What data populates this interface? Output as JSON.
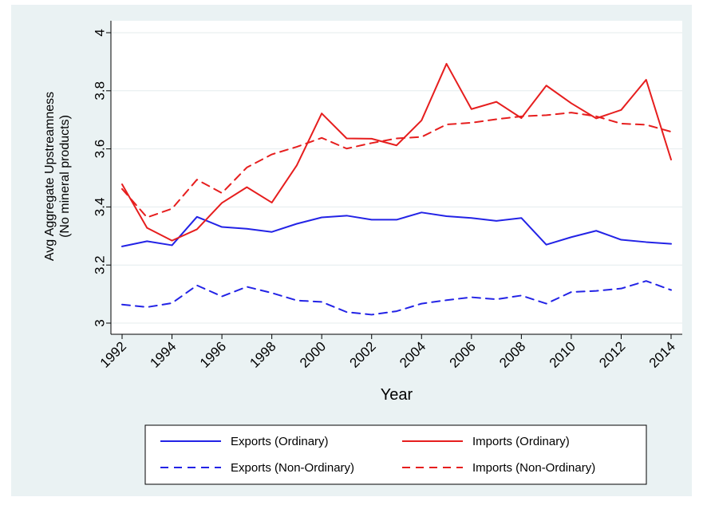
{
  "chart_data": {
    "type": "line",
    "title": "",
    "xlabel": "Year",
    "ylabel_line1": "Avg Aggregate Upstreamness",
    "ylabel_line2": "(No mineral products)",
    "xlim": [
      1992,
      2014
    ],
    "ylim": [
      3,
      4
    ],
    "x_ticks": [
      1992,
      1994,
      1996,
      1998,
      2000,
      2002,
      2004,
      2006,
      2008,
      2010,
      2012,
      2014
    ],
    "y_ticks": [
      3,
      3.2,
      3.4,
      3.6,
      3.8,
      4
    ],
    "y_tick_labels": [
      "3",
      "3.2",
      "3.4",
      "3.6",
      "3.8",
      "4"
    ],
    "grid": true,
    "legend_position": "bottom",
    "x": [
      1992,
      1993,
      1994,
      1995,
      1996,
      1997,
      1998,
      1999,
      2000,
      2001,
      2002,
      2003,
      2004,
      2005,
      2006,
      2007,
      2008,
      2009,
      2010,
      2011,
      2012,
      2013,
      2014
    ],
    "series": [
      {
        "name": "Exports (Ordinary)",
        "color": "#2323e6",
        "dash": "solid",
        "values": [
          3.264,
          3.282,
          3.268,
          3.366,
          3.331,
          3.325,
          3.314,
          3.342,
          3.364,
          3.37,
          3.356,
          3.356,
          3.381,
          3.368,
          3.362,
          3.352,
          3.362,
          3.27,
          3.296,
          3.318,
          3.287,
          3.279,
          3.273
        ]
      },
      {
        "name": "Imports (Ordinary)",
        "color": "#e61e1e",
        "dash": "solid",
        "values": [
          3.478,
          3.328,
          3.284,
          3.323,
          3.414,
          3.468,
          3.415,
          3.543,
          3.722,
          3.636,
          3.635,
          3.612,
          3.698,
          3.893,
          3.737,
          3.762,
          3.706,
          3.818,
          3.757,
          3.705,
          3.734,
          3.838,
          3.563
        ]
      },
      {
        "name": "Exports (Non-Ordinary)",
        "color": "#2323e6",
        "dash": "dashed",
        "values": [
          3.064,
          3.055,
          3.069,
          3.13,
          3.092,
          3.125,
          3.104,
          3.078,
          3.073,
          3.038,
          3.029,
          3.041,
          3.067,
          3.079,
          3.089,
          3.082,
          3.095,
          3.067,
          3.107,
          3.111,
          3.119,
          3.145,
          3.114
        ]
      },
      {
        "name": "Imports (Non-Ordinary)",
        "color": "#e61e1e",
        "dash": "dashed",
        "values": [
          3.462,
          3.364,
          3.394,
          3.494,
          3.448,
          3.536,
          3.581,
          3.607,
          3.638,
          3.601,
          3.62,
          3.636,
          3.641,
          3.684,
          3.69,
          3.702,
          3.712,
          3.716,
          3.725,
          3.712,
          3.687,
          3.683,
          3.659
        ]
      }
    ]
  }
}
